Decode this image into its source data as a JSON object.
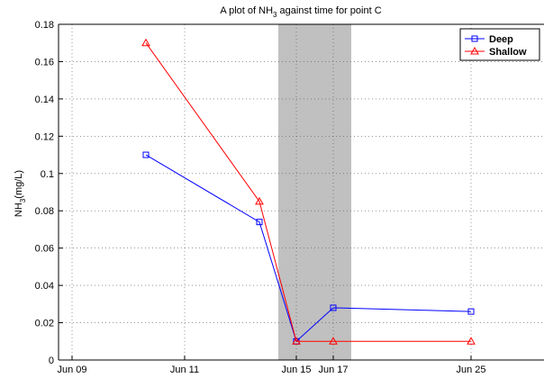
{
  "chart_data": {
    "type": "line",
    "title_pre": "A plot of NH",
    "title_sub": "3",
    "title_post": " against time for point C",
    "ylabel_pre": "NH",
    "ylabel_sub": "3",
    "ylabel_post": "(mg/L)",
    "xlabel": "",
    "ylim": [
      0,
      0.18
    ],
    "yticks": [
      "0",
      "0.02",
      "0.04",
      "0.06",
      "0.08",
      "0.1",
      "0.12",
      "0.14",
      "0.16",
      "0.18"
    ],
    "xticks": [
      "Jun 09",
      "Jun 11",
      "Jun 15",
      "Jun 17",
      "Jun 25"
    ],
    "grid": true,
    "legend_position": "top-right",
    "shaded_region": [
      "Jun 14",
      "Jun 18"
    ],
    "shade_color": "#c0c0c0",
    "series": [
      {
        "name": "Deep",
        "color": "#0000ff",
        "marker": "square",
        "x": [
          "Jun 10",
          "Jun 13",
          "Jun 15",
          "Jun 17",
          "Jun 25"
        ],
        "values": [
          0.11,
          0.074,
          0.01,
          0.028,
          0.026
        ]
      },
      {
        "name": "Shallow",
        "color": "#ff0000",
        "marker": "triangle",
        "x": [
          "Jun 10",
          "Jun 13",
          "Jun 15",
          "Jun 17",
          "Jun 25"
        ],
        "values": [
          0.17,
          0.085,
          0.01,
          0.01,
          0.01
        ]
      }
    ]
  }
}
